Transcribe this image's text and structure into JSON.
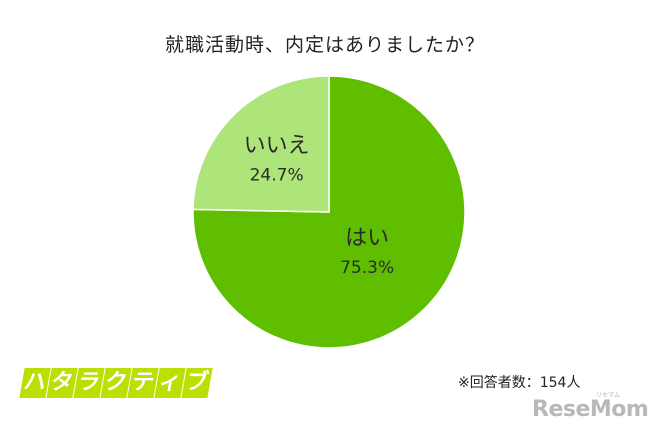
{
  "chart_data": {
    "type": "pie",
    "title": "就職活動時、内定はありましたか？",
    "slices": [
      {
        "label": "はい",
        "value": 75.3,
        "value_label": "75.3%",
        "color": "#5fbe00"
      },
      {
        "label": "いいえ",
        "value": 24.7,
        "value_label": "24.7%",
        "color": "#aee57a"
      }
    ]
  },
  "footer": {
    "respondents": "※回答者数：154人",
    "brand_logo": "ハタラクティブ",
    "watermark": "ReseMom",
    "watermark_kana": "リセマム"
  }
}
